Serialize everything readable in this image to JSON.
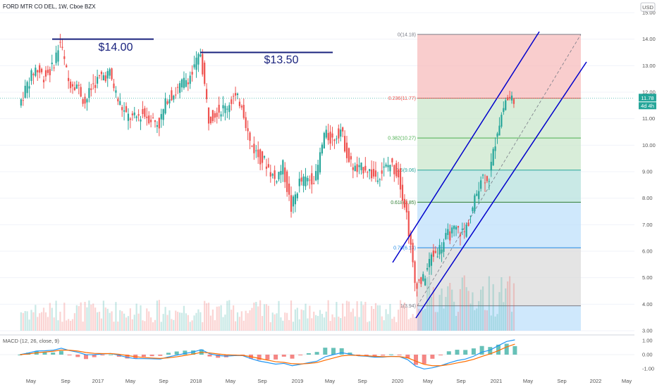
{
  "header": {
    "symbol": "FORD MTR CO DEL, 1W, Cboe BZX",
    "currency": "USD"
  },
  "colors": {
    "up": "#26a69a",
    "down": "#ef5350",
    "channel": "#0000cc",
    "annotation_line": "#1a237e",
    "price_badge": "#26a69a",
    "macd_line": "#2196f3",
    "signal_line": "#ff6d00"
  },
  "chart_data": {
    "type": "candlestick",
    "title": "FORD MTR CO DEL, 1W, Cboe BZX",
    "price_axis": {
      "ticks": [
        "15.00",
        "14.00",
        "13.00",
        "12.00",
        "11.00",
        "10.00",
        "9.00",
        "8.00",
        "7.00",
        "6.00",
        "5.00",
        "4.00",
        "3.00"
      ],
      "ylim": [
        3.0,
        15.0
      ]
    },
    "time_axis": {
      "ticks": [
        "May",
        "Sep",
        "2017",
        "May",
        "Sep",
        "2018",
        "May",
        "Sep",
        "2019",
        "May",
        "Sep",
        "2020",
        "May",
        "Sep",
        "2021",
        "May",
        "Sep",
        "2022",
        "May"
      ]
    },
    "last_price": "11.78",
    "countdown": "4d 4h",
    "annotations": [
      {
        "text": "$14.00",
        "level": 14.0
      },
      {
        "text": "$13.50",
        "level": 13.5
      }
    ],
    "fibonacci": {
      "levels": [
        {
          "label": "0(14.18)",
          "price": 14.18,
          "color": "#787b86",
          "fill": "#f7b8b8"
        },
        {
          "label": "0.236(11.77)",
          "price": 11.77,
          "color": "#ef5350",
          "fill": "#c8e6c9"
        },
        {
          "label": "0.382(10.27)",
          "price": 10.27,
          "color": "#4caf50",
          "fill": "#c8e6c9"
        },
        {
          "label": "0.5(9.06)",
          "price": 9.06,
          "color": "#26a69a",
          "fill": "#b2dfdb"
        },
        {
          "label": "0.618(7.85)",
          "price": 7.85,
          "color": "#2e7d32",
          "fill": "#bbdefb"
        },
        {
          "label": "0.78(6.13)",
          "price": 6.13,
          "color": "#1e88e5",
          "fill": "#d9d9d9"
        },
        {
          "label": "1(3.94)",
          "price": 3.94,
          "color": "#787b86",
          "fill": "#bbdefb"
        }
      ]
    },
    "series": [
      {
        "name": "Close",
        "points": [
          [
            "2016-03",
            11.5
          ],
          [
            "2016-04",
            12.3
          ],
          [
            "2016-05",
            12.9
          ],
          [
            "2016-06",
            12.6
          ],
          [
            "2016-07",
            12.9
          ],
          [
            "2016-08",
            13.9
          ],
          [
            "2016-09",
            12.4
          ],
          [
            "2016-10",
            12.3
          ],
          [
            "2016-11",
            11.6
          ],
          [
            "2016-12",
            12.3
          ],
          [
            "2017-01",
            12.6
          ],
          [
            "2017-02",
            12.7
          ],
          [
            "2017-03",
            11.7
          ],
          [
            "2017-04",
            11.1
          ],
          [
            "2017-05",
            11.0
          ],
          [
            "2017-06",
            11.2
          ],
          [
            "2017-07",
            11.0
          ],
          [
            "2017-08",
            10.8
          ],
          [
            "2017-09",
            11.8
          ],
          [
            "2017-10",
            12.0
          ],
          [
            "2017-11",
            12.4
          ],
          [
            "2017-12",
            12.7
          ],
          [
            "2018-01",
            13.5
          ],
          [
            "2018-02",
            11.0
          ],
          [
            "2018-03",
            11.3
          ],
          [
            "2018-04",
            11.4
          ],
          [
            "2018-05",
            11.8
          ],
          [
            "2018-06",
            11.6
          ],
          [
            "2018-07",
            10.1
          ],
          [
            "2018-08",
            9.6
          ],
          [
            "2018-09",
            9.3
          ],
          [
            "2018-10",
            8.7
          ],
          [
            "2018-11",
            9.2
          ],
          [
            "2018-12",
            7.6
          ],
          [
            "2019-01",
            8.6
          ],
          [
            "2019-02",
            8.7
          ],
          [
            "2019-03",
            8.8
          ],
          [
            "2019-04",
            10.4
          ],
          [
            "2019-05",
            10.2
          ],
          [
            "2019-06",
            10.6
          ],
          [
            "2019-07",
            9.4
          ],
          [
            "2019-08",
            9.0
          ],
          [
            "2019-09",
            9.2
          ],
          [
            "2019-10",
            8.8
          ],
          [
            "2019-11",
            9.0
          ],
          [
            "2019-12",
            9.3
          ],
          [
            "2020-01",
            8.9
          ],
          [
            "2020-02",
            7.4
          ],
          [
            "2020-03",
            4.8
          ],
          [
            "2020-04",
            4.9
          ],
          [
            "2020-05",
            5.8
          ],
          [
            "2020-06",
            6.1
          ],
          [
            "2020-07",
            6.6
          ],
          [
            "2020-08",
            6.8
          ],
          [
            "2020-09",
            6.7
          ],
          [
            "2020-10",
            7.6
          ],
          [
            "2020-11",
            8.8
          ],
          [
            "2020-12",
            8.8
          ],
          [
            "2021-01",
            10.6
          ],
          [
            "2021-02",
            11.7
          ],
          [
            "2021-03",
            11.8
          ]
        ]
      }
    ],
    "macd": {
      "label": "MACD (12, 26, close, 9)",
      "ticks": [
        "1.00",
        "0.00",
        "-1.00"
      ],
      "ylim": [
        -1.3,
        1.3
      ]
    }
  }
}
